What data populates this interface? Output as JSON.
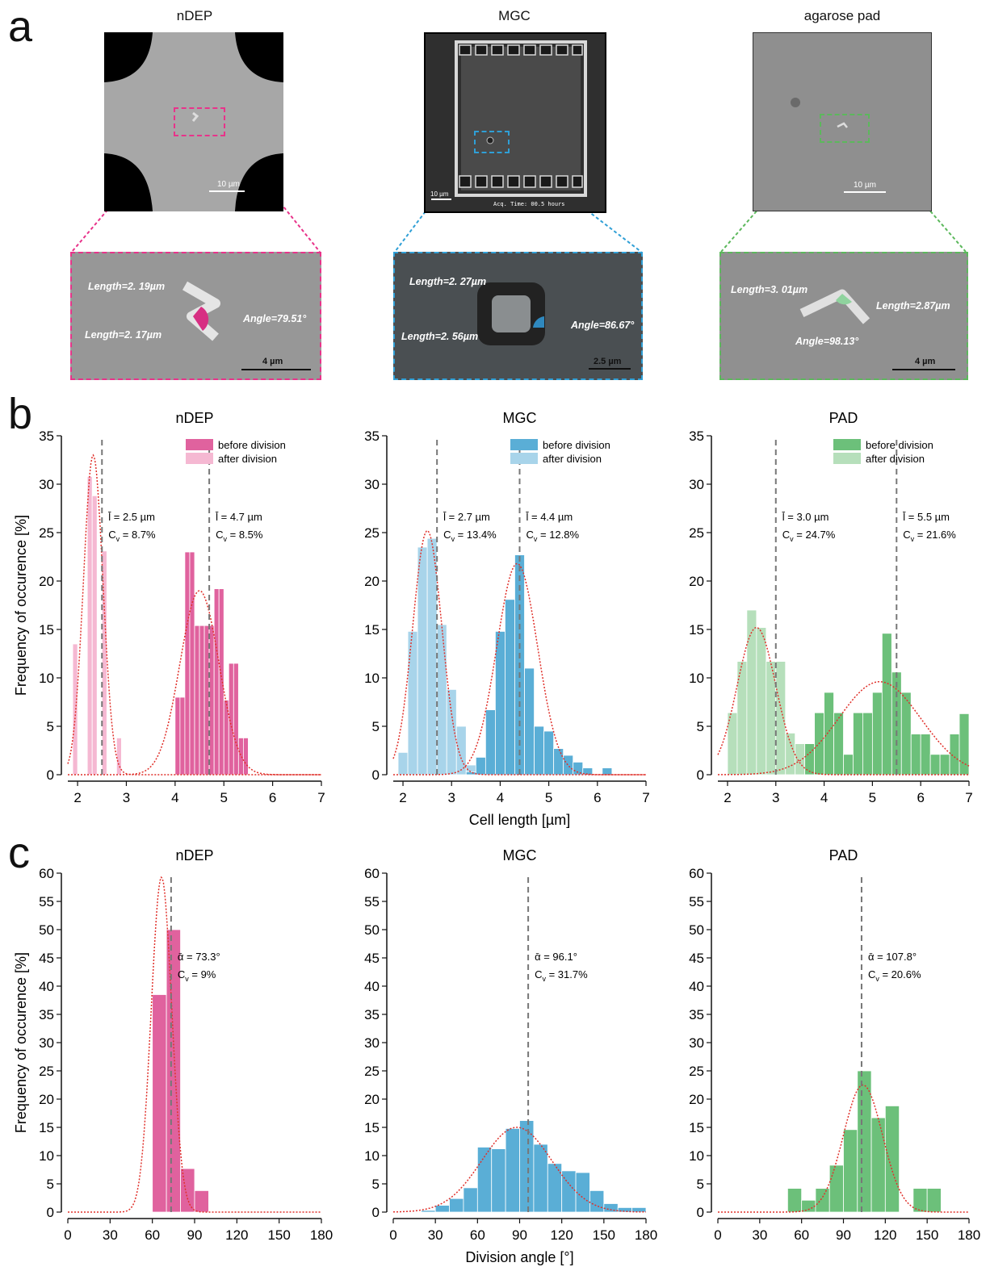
{
  "panel_a": {
    "letter": "a",
    "colors": {
      "ndep": "#e8338a",
      "mgc": "#2f9fd6",
      "pad": "#5cb85c"
    },
    "images": [
      {
        "title": "nDEP",
        "scale_top": "10 µm",
        "scale_zoom": "4 µm",
        "labels": [
          "Length=2. 19µm",
          "Length=2. 17µm",
          "Angle=79.51°"
        ]
      },
      {
        "title": "MGC",
        "scale_top": "10 µm",
        "overlay_text": "Acq. Time: 00.5 hours",
        "scale_zoom": "2.5 µm",
        "labels": [
          "Length=2. 27µm",
          "Length=2. 56µm",
          "Angle=86.67°"
        ]
      },
      {
        "title": "agarose pad",
        "scale_top": "10 µm",
        "scale_zoom": "4 µm",
        "labels": [
          "Length=3. 01µm",
          "Length=2.87µm",
          "Angle=98.13°"
        ]
      }
    ]
  },
  "chart_data": [
    {
      "panel": "b",
      "type": "bar",
      "title": "nDEP",
      "ylabel": "Frequency of occurence [%]",
      "xlabel": "",
      "xlim": [
        1.8,
        7
      ],
      "ylim": [
        0,
        35
      ],
      "xticks": [
        2,
        3,
        4,
        5,
        6,
        7
      ],
      "yticks": [
        0,
        5,
        10,
        15,
        20,
        25,
        30,
        35
      ],
      "color_before": "#e0629e",
      "color_after": "#f5b8d2",
      "legend": [
        "before division",
        "after division"
      ],
      "series": [
        {
          "name": "after division",
          "bin_width": 0.1,
          "x": [
            1.9,
            2.0,
            2.1,
            2.2,
            2.3,
            2.4,
            2.5,
            2.6,
            2.7,
            2.8
          ],
          "values": [
            13.5,
            0,
            0,
            30.8,
            28.8,
            0,
            23.1,
            0,
            0,
            3.8
          ]
        },
        {
          "name": "before division",
          "bin_width": 0.1,
          "x": [
            4.0,
            4.1,
            4.2,
            4.3,
            4.4,
            4.5,
            4.6,
            4.7,
            4.8,
            4.9,
            5.0,
            5.1,
            5.2,
            5.3,
            5.4
          ],
          "values": [
            8,
            8,
            23,
            23,
            15.4,
            15.4,
            15.4,
            15.4,
            19.2,
            19.2,
            7.7,
            11.5,
            11.5,
            3.8,
            3.8
          ]
        }
      ],
      "annotations": [
        {
          "x": 2.5,
          "mean": "2.5 µm",
          "cv": "8.7%"
        },
        {
          "x": 4.7,
          "mean": "4.7 µm",
          "cv": "8.5%"
        }
      ],
      "fits": [
        {
          "mu": 2.32,
          "sigma": 0.2,
          "amp": 33
        },
        {
          "mu": 4.5,
          "sigma": 0.4,
          "amp": 19
        }
      ]
    },
    {
      "panel": "b",
      "type": "bar",
      "title": "MGC",
      "ylabel": "",
      "xlabel": "Cell length [µm]",
      "xlim": [
        1.8,
        7
      ],
      "ylim": [
        0,
        35
      ],
      "xticks": [
        2,
        3,
        4,
        5,
        6,
        7
      ],
      "yticks": [
        0,
        5,
        10,
        15,
        20,
        25,
        30,
        35
      ],
      "color_before": "#5aaed6",
      "color_after": "#a8d4ea",
      "legend": [
        "before division",
        "after division"
      ],
      "series": [
        {
          "name": "after division",
          "bin_width": 0.2,
          "x": [
            1.9,
            2.1,
            2.3,
            2.5,
            2.7,
            2.9,
            3.1,
            3.3
          ],
          "values": [
            2.3,
            14.8,
            23.5,
            24.4,
            15.5,
            8.8,
            5.0,
            1.0
          ]
        },
        {
          "name": "before division",
          "bin_width": 0.2,
          "x": [
            3.3,
            3.5,
            3.7,
            3.9,
            4.1,
            4.3,
            4.5,
            4.7,
            4.9,
            5.1,
            5.3,
            5.5,
            5.7,
            6.1
          ],
          "values": [
            0.3,
            1.8,
            6.7,
            14.8,
            18.1,
            22.7,
            11.0,
            5.0,
            4.5,
            2.7,
            2.0,
            1.3,
            0.7,
            0.7
          ]
        }
      ],
      "annotations": [
        {
          "x": 2.7,
          "mean": "2.7 µm",
          "cv": "13.4%"
        },
        {
          "x": 4.4,
          "mean": "4.4 µm",
          "cv": "12.8%"
        }
      ],
      "fits": [
        {
          "mu": 2.5,
          "sigma": 0.3,
          "amp": 25.2
        },
        {
          "mu": 4.35,
          "sigma": 0.42,
          "amp": 21.8
        }
      ]
    },
    {
      "panel": "b",
      "type": "bar",
      "title": "PAD",
      "ylabel": "",
      "xlabel": "",
      "xlim": [
        1.8,
        7
      ],
      "ylim": [
        0,
        35
      ],
      "xticks": [
        2,
        3,
        4,
        5,
        6,
        7
      ],
      "yticks": [
        0,
        5,
        10,
        15,
        20,
        25,
        30,
        35
      ],
      "color_before": "#6cc07a",
      "color_after": "#b6dfbb",
      "legend": [
        "before division",
        "after division"
      ],
      "series": [
        {
          "name": "after division",
          "bin_width": 0.2,
          "x": [
            2.0,
            2.2,
            2.4,
            2.6,
            2.8,
            3.0,
            3.2,
            3.4
          ],
          "values": [
            6.4,
            11.7,
            17.0,
            15.2,
            11.7,
            11.7,
            4.3,
            3.2
          ]
        },
        {
          "name": "before division",
          "bin_width": 0.2,
          "x": [
            3.6,
            3.8,
            4.0,
            4.2,
            4.4,
            4.6,
            4.8,
            5.0,
            5.2,
            5.4,
            5.6,
            5.8,
            6.0,
            6.2,
            6.4,
            6.6,
            6.8
          ],
          "values": [
            3.2,
            6.4,
            8.5,
            6.4,
            2.1,
            6.4,
            6.4,
            8.5,
            14.6,
            10.6,
            8.5,
            4.2,
            4.2,
            2.1,
            2.1,
            4.2,
            6.3
          ]
        }
      ],
      "annotations": [
        {
          "x": 3.0,
          "mean": "3.0 µm",
          "cv": "24.7%"
        },
        {
          "x": 5.5,
          "mean": "5.5 µm",
          "cv": "21.6%"
        }
      ],
      "fits": [
        {
          "mu": 2.6,
          "sigma": 0.4,
          "amp": 15.2
        },
        {
          "mu": 5.15,
          "sigma": 0.85,
          "amp": 9.6
        }
      ]
    },
    {
      "panel": "c",
      "type": "bar",
      "title": "nDEP",
      "ylabel": "Frequency of occurence [%]",
      "xlabel": "",
      "xlim": [
        0,
        180
      ],
      "ylim": [
        0,
        60
      ],
      "xticks": [
        0,
        30,
        60,
        90,
        120,
        150,
        180
      ],
      "yticks": [
        0,
        5,
        10,
        15,
        20,
        25,
        30,
        35,
        40,
        45,
        50,
        55,
        60
      ],
      "color": "#e0629e",
      "bin_width": 10,
      "x": [
        60,
        70,
        80,
        90
      ],
      "values": [
        38.5,
        50,
        7.7,
        3.8
      ],
      "annotations": [
        {
          "x": 73.3,
          "mean": "73.3°",
          "cv": "9%"
        }
      ],
      "fits": [
        {
          "mu": 66.5,
          "sigma": 7.3,
          "amp": 59.3
        }
      ]
    },
    {
      "panel": "c",
      "type": "bar",
      "title": "MGC",
      "ylabel": "",
      "xlabel": "Division angle [°]",
      "xlim": [
        0,
        180
      ],
      "ylim": [
        0,
        60
      ],
      "xticks": [
        0,
        30,
        60,
        90,
        120,
        150,
        180
      ],
      "yticks": [
        0,
        5,
        10,
        15,
        20,
        25,
        30,
        35,
        40,
        45,
        50,
        55,
        60
      ],
      "color": "#5aaed6",
      "bin_width": 10,
      "x": [
        20,
        30,
        40,
        50,
        60,
        70,
        80,
        90,
        100,
        110,
        120,
        130,
        140,
        150,
        160,
        170
      ],
      "values": [
        0.3,
        1.2,
        2.4,
        4.3,
        11.5,
        11.2,
        14.8,
        16.2,
        12.0,
        8.6,
        7.3,
        7.0,
        3.8,
        1.5,
        0.8,
        0.8
      ],
      "annotations": [
        {
          "x": 96.1,
          "mean": "96.1°",
          "cv": "31.7%"
        }
      ],
      "fits": [
        {
          "mu": 88,
          "sigma": 25,
          "amp": 15
        }
      ]
    },
    {
      "panel": "c",
      "type": "bar",
      "title": "PAD",
      "ylabel": "",
      "xlabel": "",
      "xlim": [
        0,
        180
      ],
      "ylim": [
        0,
        60
      ],
      "xticks": [
        0,
        30,
        60,
        90,
        120,
        150,
        180
      ],
      "yticks": [
        0,
        5,
        10,
        15,
        20,
        25,
        30,
        35,
        40,
        45,
        50,
        55,
        60
      ],
      "color": "#6cc07a",
      "bin_width": 10,
      "x": [
        50,
        60,
        70,
        80,
        90,
        100,
        110,
        120,
        130,
        140,
        150
      ],
      "values": [
        4.2,
        2.1,
        4.2,
        8.3,
        14.6,
        25.0,
        16.7,
        18.8,
        0,
        4.2,
        4.2
      ],
      "annotations": [
        {
          "x": 103,
          "mean": "107.8°",
          "cv": "20.6%"
        }
      ],
      "fits": [
        {
          "mu": 104,
          "sigma": 14,
          "amp": 22.5
        }
      ]
    }
  ],
  "panel_letters": {
    "b": "b",
    "c": "c"
  },
  "stat_symbols": {
    "length": "l̄",
    "angle": "ᾱ",
    "cv": "C",
    "cv_sub": "v"
  }
}
